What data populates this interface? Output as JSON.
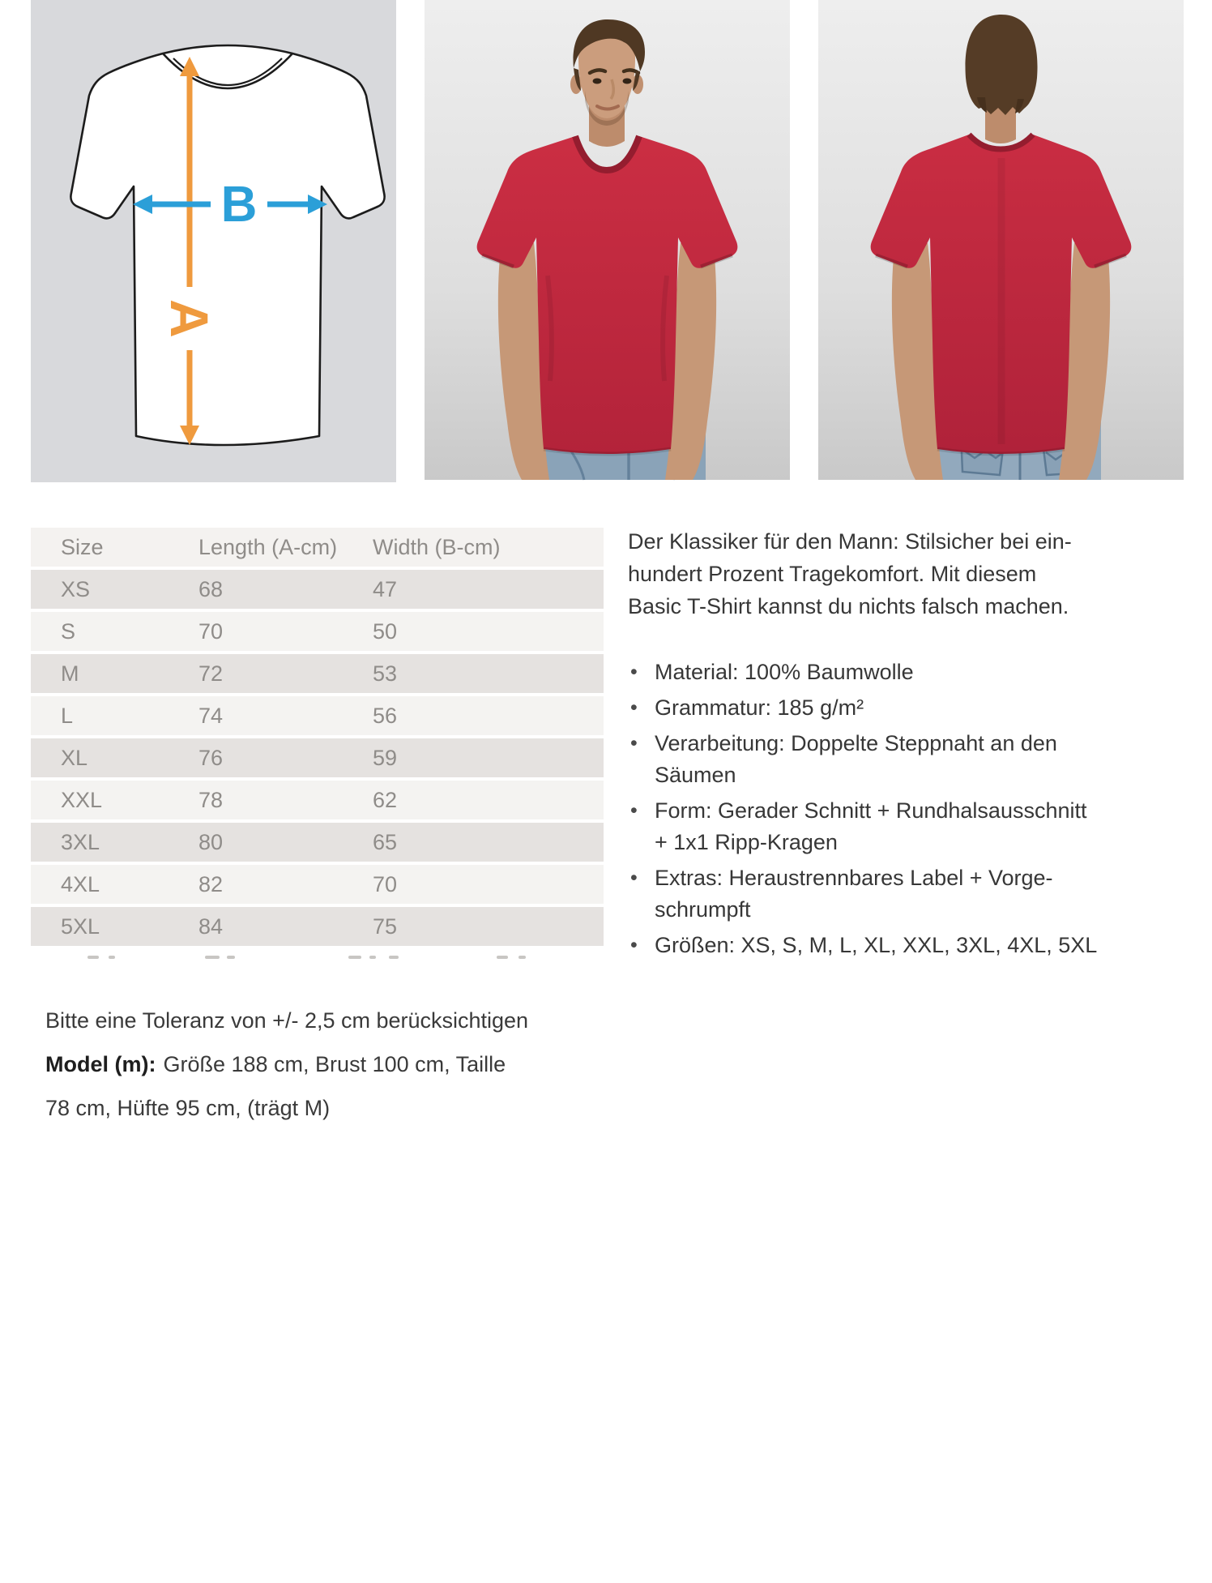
{
  "gallery": {
    "diagram": {
      "label_a": "A",
      "label_b": "B"
    }
  },
  "size_table": {
    "columns": [
      "Size",
      "Length (A-cm)",
      "Width (B-cm)"
    ],
    "rows": [
      [
        "XS",
        "68",
        "47"
      ],
      [
        "S",
        "70",
        "50"
      ],
      [
        "M",
        "72",
        "53"
      ],
      [
        "L",
        "74",
        "56"
      ],
      [
        "XL",
        "76",
        "59"
      ],
      [
        "XXL",
        "78",
        "62"
      ],
      [
        "3XL",
        "80",
        "65"
      ],
      [
        "4XL",
        "82",
        "70"
      ],
      [
        "5XL",
        "84",
        "75"
      ]
    ]
  },
  "description": {
    "bullet_char": "•",
    "intro_lines": [
      "Der Klassiker für den Mann: Stilsicher bei ein-",
      "hundert Prozent Tragekomfort. Mit diesem",
      "Basic T-Shirt kannst du nichts falsch machen."
    ],
    "bullets": [
      {
        "lines": [
          "Material: 100% Baumwolle"
        ]
      },
      {
        "lines": [
          "Grammatur: 185 g/m²"
        ]
      },
      {
        "lines": [
          "Verarbeitung: Doppelte Steppnaht an den",
          "Säumen"
        ]
      },
      {
        "lines": [
          "Form: Gerader Schnitt + Rundhalsausschnitt",
          "+ 1x1 Ripp-Kragen"
        ]
      },
      {
        "lines": [
          "Extras: Heraustrennbares Label + Vorge-",
          "schrumpft"
        ]
      },
      {
        "lines": [
          "Größen: XS, S, M, L, XL, XXL, 3XL, 4XL, 5XL"
        ]
      }
    ]
  },
  "notes": {
    "tolerance": "Bitte eine Toleranz von +/- 2,5 cm berücksichtigen",
    "model_label": "Model (m):",
    "model_line1": "Größe 188 cm, Brust 100 cm, Taille",
    "model_line2": "78 cm, Hüfte 95 cm, (trägt M)"
  },
  "colors": {
    "accent_orange": "#ef9a3e",
    "accent_blue": "#2b9fd8",
    "shirt_red": "#c42a3f",
    "diagram_bg": "#d8d9dc",
    "photo_bg_top": "#ededed",
    "photo_bg_bottom": "#cfcfcf",
    "table_header_bg": "#f4f2f0",
    "table_row_dark": "#e5e2e0",
    "table_row_light": "#f4f3f1",
    "table_text": "#8f8c89",
    "body_text": "#373737",
    "denim": "#8aa3b8",
    "skin": "#c69877",
    "hair": "#4f3823"
  }
}
